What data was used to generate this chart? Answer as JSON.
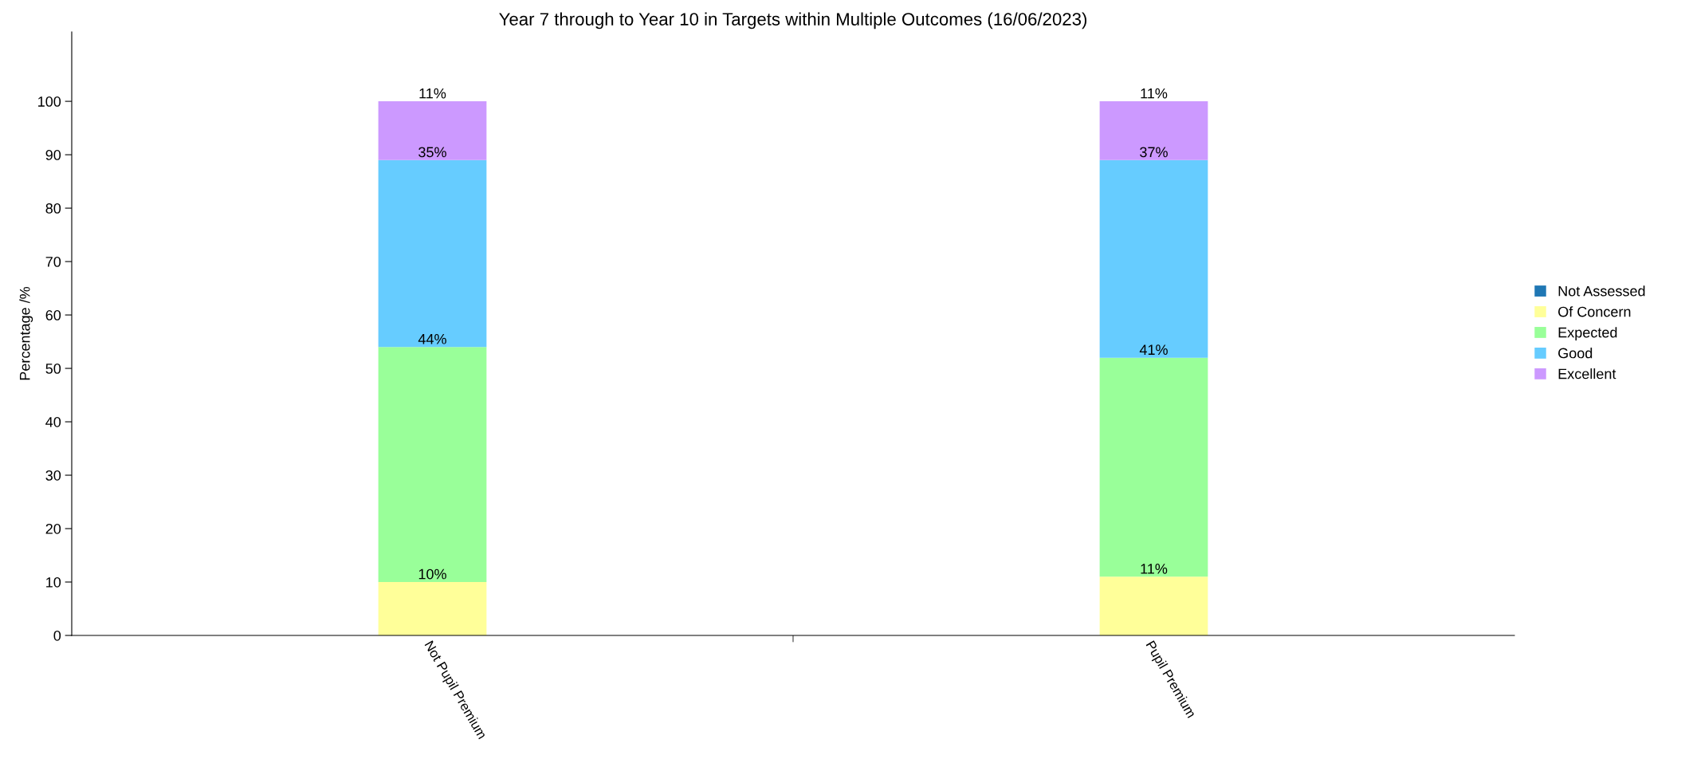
{
  "chart_data": {
    "type": "bar",
    "stacked": true,
    "title": "Year 7 through to Year 10 in Targets within Multiple Outcomes (16/06/2023)",
    "ylabel": "Percentage /%",
    "categories": [
      "Not Pupil Premium",
      "Pupil Premium"
    ],
    "series": [
      {
        "name": "Not Assessed",
        "color": "#1f77b4",
        "values": [
          0,
          0
        ],
        "value_labels": [
          null,
          null
        ]
      },
      {
        "name": "Of Concern",
        "color": "#ffff99",
        "values": [
          10,
          11
        ],
        "value_labels": [
          "10%",
          "11%"
        ]
      },
      {
        "name": "Expected",
        "color": "#99ff99",
        "values": [
          44,
          41
        ],
        "value_labels": [
          "44%",
          "41%"
        ]
      },
      {
        "name": "Good",
        "color": "#66ccff",
        "values": [
          35,
          37
        ],
        "value_labels": [
          "35%",
          "37%"
        ]
      },
      {
        "name": "Excellent",
        "color": "#cc99ff",
        "values": [
          11,
          11
        ],
        "value_labels": [
          "11%",
          "11%"
        ]
      }
    ],
    "ylim": [
      0,
      113
    ],
    "yticks": [
      0,
      10,
      20,
      30,
      40,
      50,
      60,
      70,
      80,
      90,
      100
    ],
    "grid": false,
    "legend": "right"
  }
}
